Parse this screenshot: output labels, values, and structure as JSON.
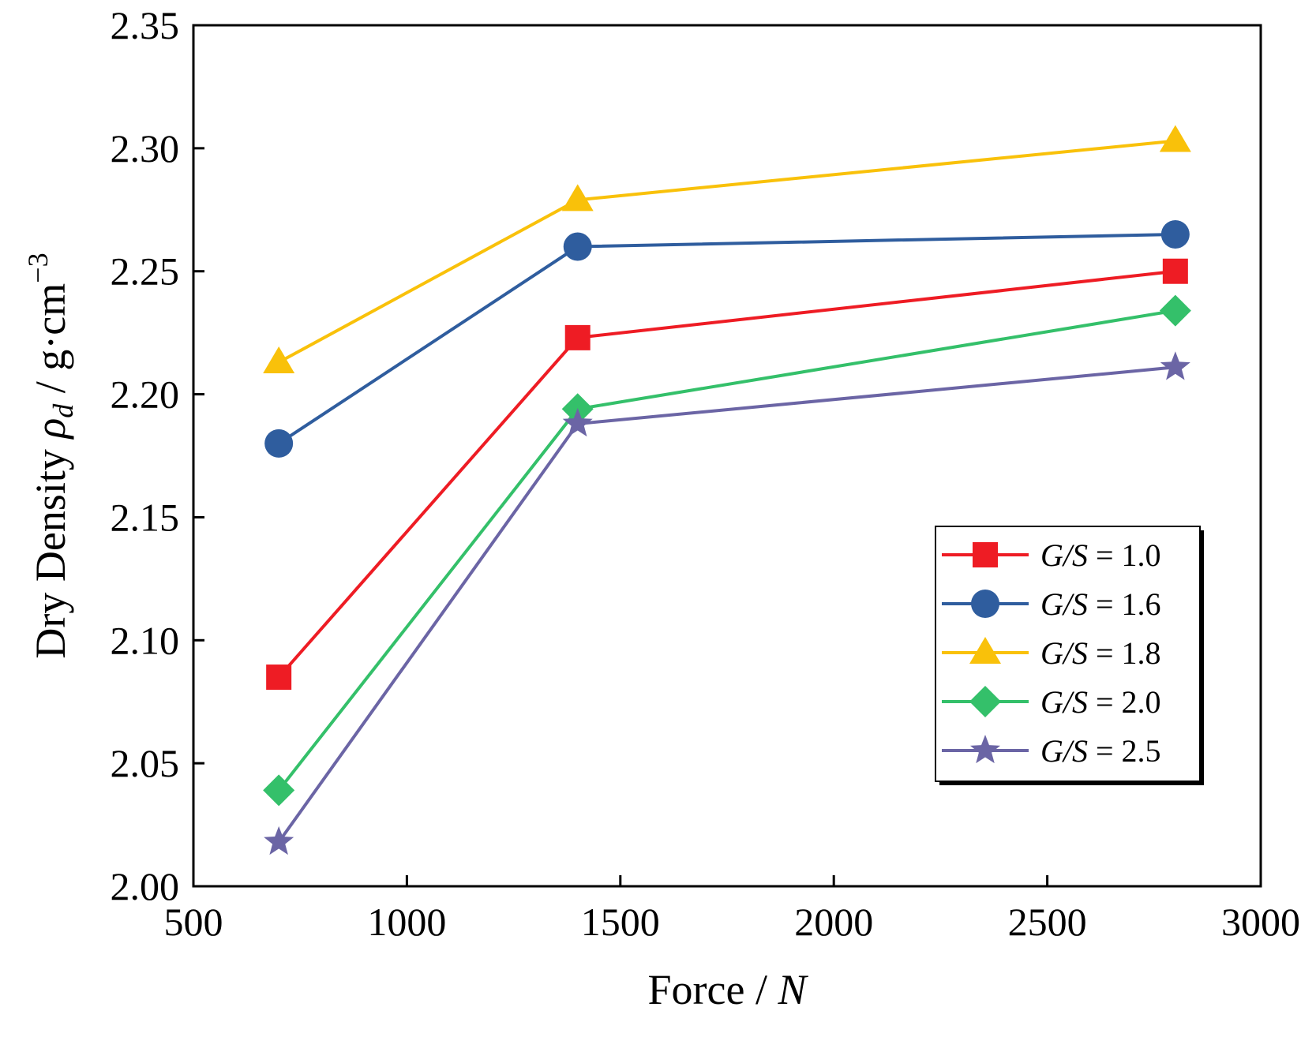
{
  "chart_data": {
    "type": "line",
    "x": [
      700,
      1400,
      2800
    ],
    "xlim": [
      500,
      3000
    ],
    "ylim": [
      2.0,
      2.35
    ],
    "xticks": [
      "500",
      "1000",
      "1500",
      "2000",
      "2500",
      "3000"
    ],
    "yticks": [
      "2.00",
      "2.05",
      "2.10",
      "2.15",
      "2.20",
      "2.25",
      "2.30",
      "2.35"
    ],
    "xlabel": {
      "prefix": "Force / ",
      "var": "N"
    },
    "ylabel": {
      "prefix": "Dry Density ",
      "sym": "ρ",
      "sub": "d",
      "mid": " / g·cm",
      "sup": "−3"
    },
    "legend_position": "lower-right",
    "legend_prefix": "G/S",
    "series": [
      {
        "name": "G/S = 1.0",
        "value_label": " = 1.0",
        "color": "#ee1c24",
        "marker": "square",
        "values": [
          2.085,
          2.223,
          2.25
        ]
      },
      {
        "name": "G/S = 1.6",
        "value_label": " = 1.6",
        "color": "#2f5d9e",
        "marker": "circle",
        "values": [
          2.18,
          2.26,
          2.265
        ]
      },
      {
        "name": "G/S = 1.8",
        "value_label": " = 1.8",
        "color": "#f9c10a",
        "marker": "triangle",
        "values": [
          2.213,
          2.279,
          2.303
        ]
      },
      {
        "name": "G/S = 2.0",
        "value_label": " = 2.0",
        "color": "#34c06a",
        "marker": "diamond",
        "values": [
          2.039,
          2.194,
          2.234
        ]
      },
      {
        "name": "G/S = 2.5",
        "value_label": " = 2.5",
        "color": "#6b65a5",
        "marker": "star",
        "values": [
          2.018,
          2.188,
          2.211
        ]
      }
    ]
  }
}
